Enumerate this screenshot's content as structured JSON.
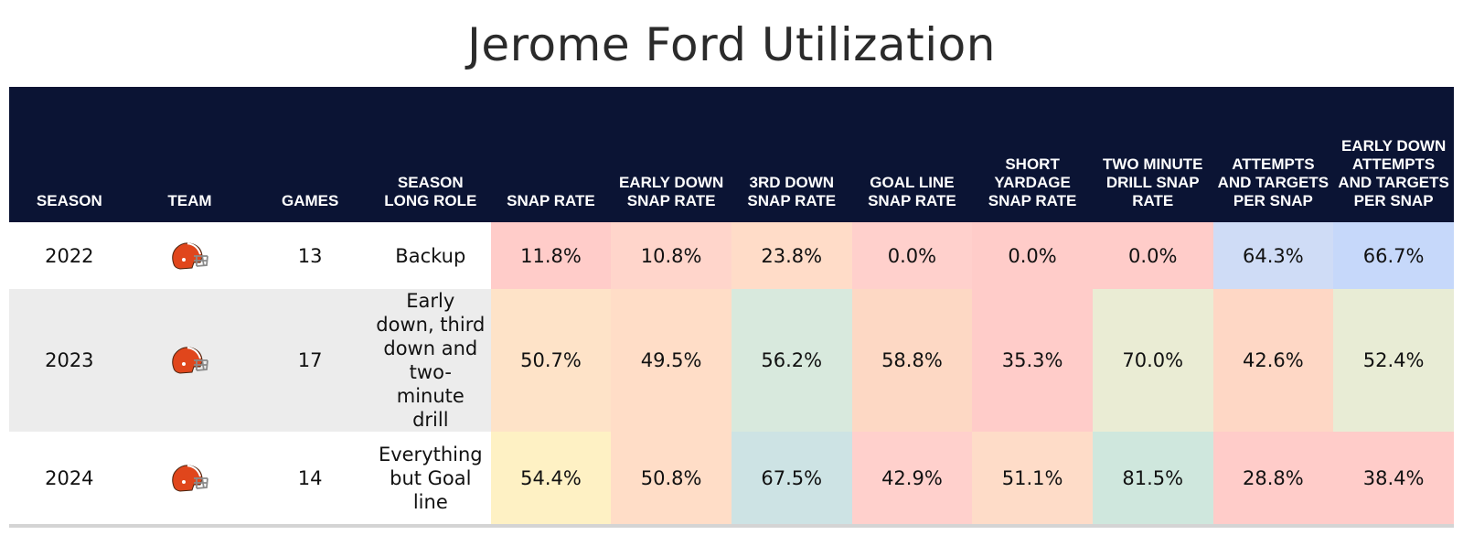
{
  "chart_data": {
    "type": "table",
    "title": "Jerome Ford Utilization",
    "columns": [
      "SEASON",
      "TEAM",
      "GAMES",
      "SEASON LONG ROLE",
      "SNAP RATE",
      "EARLY DOWN SNAP RATE",
      "3RD DOWN SNAP RATE",
      "GOAL LINE SNAP RATE",
      "SHORT YARDAGE SNAP RATE",
      "TWO MINUTE DRILL SNAP RATE",
      "ATTEMPTS AND TARGETS PER SNAP",
      "EARLY DOWN ATTEMPTS AND TARGETS PER SNAP"
    ],
    "rows": [
      {
        "season": "2022",
        "team_icon": "browns-helmet-icon",
        "games": "13",
        "role": "Backup",
        "values": [
          "11.8%",
          "10.8%",
          "23.8%",
          "0.0%",
          "0.0%",
          "0.0%",
          "64.3%",
          "66.7%"
        ],
        "colors": [
          "#ffccc9",
          "#ffd5cb",
          "#ffdcc8",
          "#ffd0cc",
          "#ffccc9",
          "#ffccc9",
          "#cfdcf6",
          "#c6d8fa"
        ]
      },
      {
        "season": "2023",
        "team_icon": "browns-helmet-icon",
        "games": "17",
        "role": "Early down, third down and two-minute drill",
        "values": [
          "50.7%",
          "49.5%",
          "56.2%",
          "58.8%",
          "35.3%",
          "70.0%",
          "42.6%",
          "52.4%"
        ],
        "colors": [
          "#fee3c8",
          "#ffddc7",
          "#d8e9dd",
          "#fdd8c4",
          "#ffccc9",
          "#eaecd4",
          "#fed7c5",
          "#e8ecd5"
        ]
      },
      {
        "season": "2024",
        "team_icon": "browns-helmet-icon",
        "games": "14",
        "role": "Everything but Goal line",
        "values": [
          "54.4%",
          "50.8%",
          "67.5%",
          "42.9%",
          "51.1%",
          "81.5%",
          "28.8%",
          "38.4%"
        ],
        "colors": [
          "#fef1c4",
          "#ffddc7",
          "#cde3e4",
          "#ffd0cc",
          "#fedcc8",
          "#cfe7dd",
          "#ffccc9",
          "#ffccc9"
        ]
      }
    ],
    "row_backgrounds": [
      "#ffffff",
      "#ececec",
      "#ffffff"
    ],
    "header_background": "#0b1434"
  }
}
